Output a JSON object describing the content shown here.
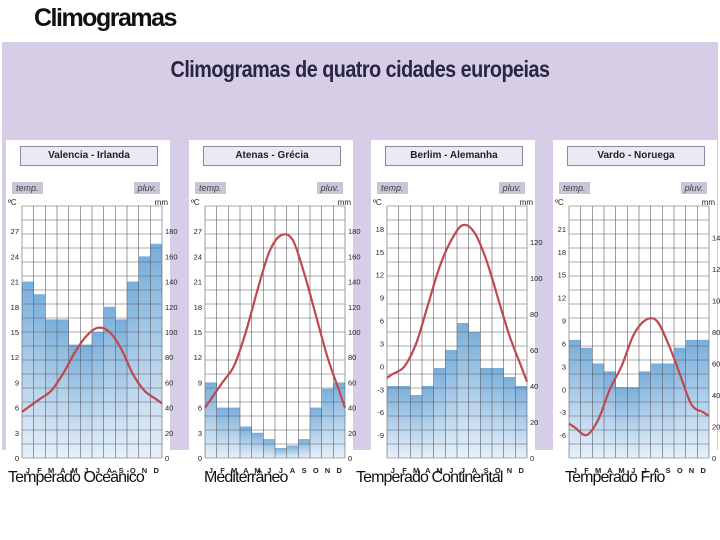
{
  "title": "Climogramas",
  "board_title": "Climogramas de quatro cidades europeias",
  "months": [
    "J",
    "F",
    "M",
    "A",
    "M",
    "J",
    "J",
    "A",
    "S",
    "O",
    "N",
    "D"
  ],
  "chart_data": [
    {
      "type": "bar",
      "city": "Valencia - Irlanda",
      "climate": "Temperado Oceânico",
      "left_tag": "temp.",
      "right_tag": "pluv.",
      "left_unit": "ºC",
      "right_unit": "mm",
      "temp_ticks": [
        0,
        3,
        6,
        9,
        12,
        15,
        18,
        21,
        24,
        27
      ],
      "rain_ticks": [
        0,
        20,
        40,
        60,
        80,
        100,
        120,
        140,
        160,
        180
      ],
      "temp_range": [
        0,
        30
      ],
      "rain_range": [
        0,
        200
      ],
      "precipitation": [
        140,
        130,
        110,
        110,
        90,
        90,
        100,
        120,
        110,
        140,
        160,
        170
      ],
      "temperature": [
        6,
        7,
        8,
        10,
        12.5,
        14.5,
        15.5,
        15,
        13,
        10,
        8,
        7
      ]
    },
    {
      "type": "bar",
      "city": "Atenas - Grécia",
      "climate": "Mediterrâneo",
      "left_tag": "temp.",
      "right_tag": "pluv.",
      "left_unit": "ºC",
      "right_unit": "mm",
      "temp_ticks": [
        0,
        3,
        6,
        9,
        12,
        15,
        18,
        21,
        24,
        27
      ],
      "rain_ticks": [
        0,
        20,
        40,
        60,
        80,
        100,
        120,
        140,
        160,
        180
      ],
      "temp_range": [
        0,
        30
      ],
      "rain_range": [
        0,
        200
      ],
      "precipitation": [
        60,
        40,
        40,
        25,
        20,
        15,
        8,
        10,
        15,
        40,
        55,
        60
      ],
      "temperature": [
        7,
        9,
        11,
        15,
        20,
        24.5,
        26.5,
        26,
        22,
        17,
        12,
        8
      ]
    },
    {
      "type": "bar",
      "city": "Berlim - Alemanha",
      "climate": "Temperado Continental",
      "left_tag": "temp.",
      "right_tag": "pluv.",
      "left_unit": "ºC",
      "right_unit": "mm",
      "temp_ticks": [
        -9,
        -6,
        -3,
        0,
        3,
        6,
        9,
        12,
        15,
        18
      ],
      "rain_ticks": [
        0,
        20,
        40,
        60,
        80,
        100,
        120
      ],
      "temp_range": [
        -12,
        21
      ],
      "rain_range": [
        0,
        140
      ],
      "precipitation": [
        40,
        40,
        35,
        40,
        50,
        60,
        75,
        70,
        50,
        50,
        45,
        40
      ],
      "temperature": [
        -1,
        0,
        3,
        8,
        13,
        16.5,
        18.5,
        17.5,
        14,
        9,
        4,
        0
      ]
    },
    {
      "type": "bar",
      "city": "Vardo - Noruega",
      "climate": "Temperado Frio",
      "left_tag": "temp.",
      "right_tag": "pluv.",
      "left_unit": "ºC",
      "right_unit": "mm",
      "temp_ticks": [
        -6,
        -3,
        0,
        3,
        6,
        9,
        12,
        15,
        18,
        21
      ],
      "rain_ticks": [
        0,
        20,
        40,
        60,
        80,
        100,
        120,
        140
      ],
      "temp_range": [
        -9,
        24
      ],
      "rain_range": [
        0,
        160
      ],
      "precipitation": [
        75,
        70,
        60,
        55,
        45,
        45,
        55,
        60,
        60,
        70,
        75,
        75
      ],
      "temperature": [
        -5,
        -6,
        -4,
        0,
        3,
        7,
        9,
        9,
        6,
        2,
        -2,
        -3
      ]
    }
  ]
}
